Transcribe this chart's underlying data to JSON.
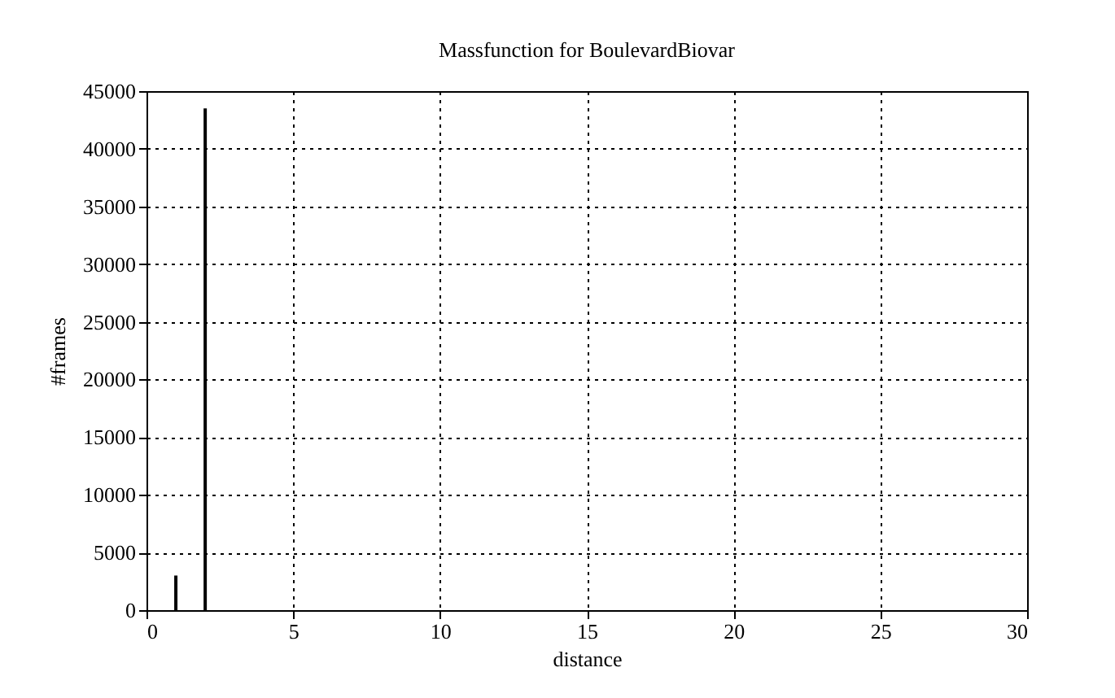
{
  "chart_data": {
    "type": "bar",
    "title": "Massfunction for BoulevardBiovar",
    "xlabel": "distance",
    "ylabel": "#frames",
    "x": [
      1,
      2
    ],
    "values": [
      3000,
      43500
    ],
    "color": "#000000",
    "xlim": [
      0,
      30
    ],
    "xticks": [
      0,
      5,
      10,
      15,
      20,
      25,
      30
    ],
    "ylim": [
      0,
      45000
    ],
    "yticks": [
      0,
      5000,
      10000,
      15000,
      20000,
      25000,
      30000,
      35000,
      40000,
      45000
    ],
    "grid": true
  }
}
